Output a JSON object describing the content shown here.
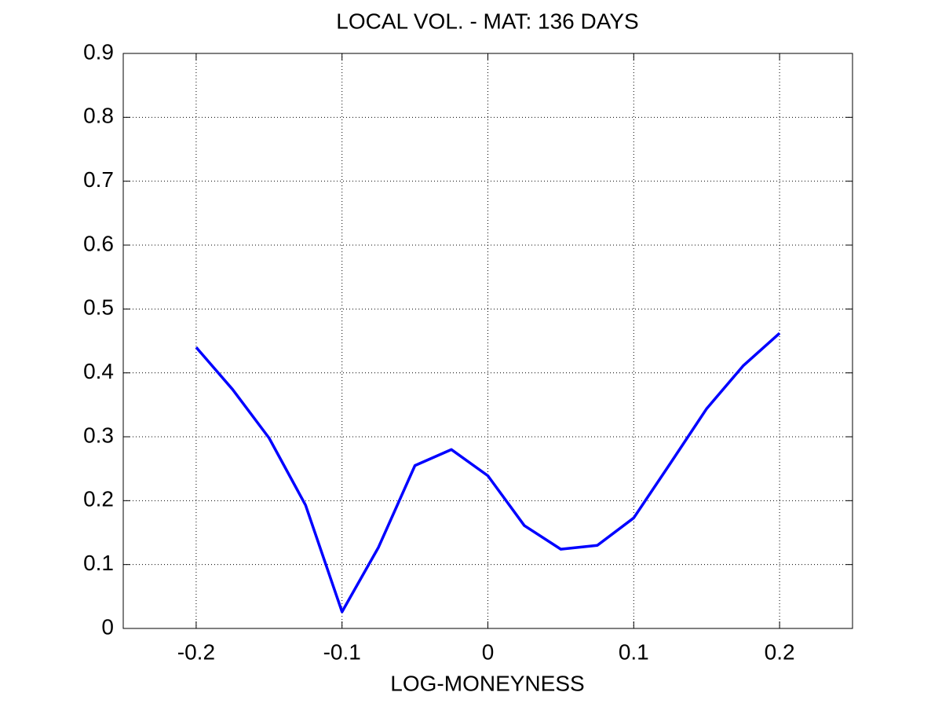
{
  "chart_data": {
    "type": "line",
    "title": "LOCAL VOL. - MAT: 136 DAYS",
    "x_label": "LOG-MONEYNESS",
    "x": [
      -0.2,
      -0.175,
      -0.15,
      -0.125,
      -0.1,
      -0.075,
      -0.05,
      -0.025,
      0,
      0.025,
      0.05,
      0.075,
      0.1,
      0.125,
      0.15,
      0.175,
      0.2
    ],
    "series": [
      {
        "color": "#0000ff",
        "values": [
          0.44,
          0.374,
          0.298,
          0.193,
          0.026,
          0.127,
          0.255,
          0.28,
          0.239,
          0.161,
          0.124,
          0.13,
          0.173,
          0.258,
          0.344,
          0.411,
          0.462
        ]
      }
    ],
    "xlim": [
      -0.25,
      0.25
    ],
    "xticks": [
      -0.2,
      -0.1,
      0,
      0.1,
      0.2
    ],
    "ylim": [
      0,
      0.9
    ],
    "yticks": [
      0,
      0.1,
      0.2,
      0.3,
      0.4,
      0.5,
      0.6,
      0.7,
      0.8,
      0.9
    ],
    "grid": true
  }
}
